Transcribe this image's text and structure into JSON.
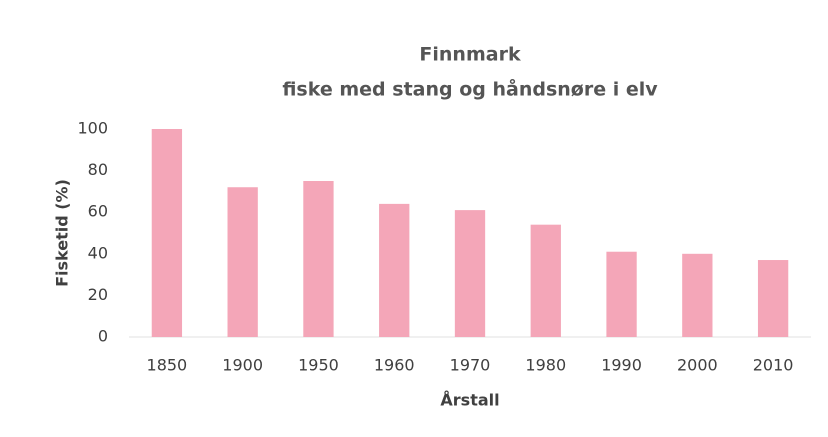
{
  "chart_data": {
    "type": "bar",
    "title": "Finnmark",
    "subtitle": "fiske med stang og håndsnøre i elv",
    "x_label": "Årstall",
    "y_label": "Fisketid (%)",
    "categories": [
      "1850",
      "1900",
      "1950",
      "1960",
      "1970",
      "1980",
      "1990",
      "2000",
      "2010"
    ],
    "values": [
      100,
      72,
      75,
      64,
      61,
      54,
      41,
      40,
      37
    ],
    "color": "#f4a6b8",
    "ylim": [
      0,
      100
    ],
    "yticks": [
      0,
      20,
      40,
      60,
      80,
      100
    ],
    "grid": false
  }
}
